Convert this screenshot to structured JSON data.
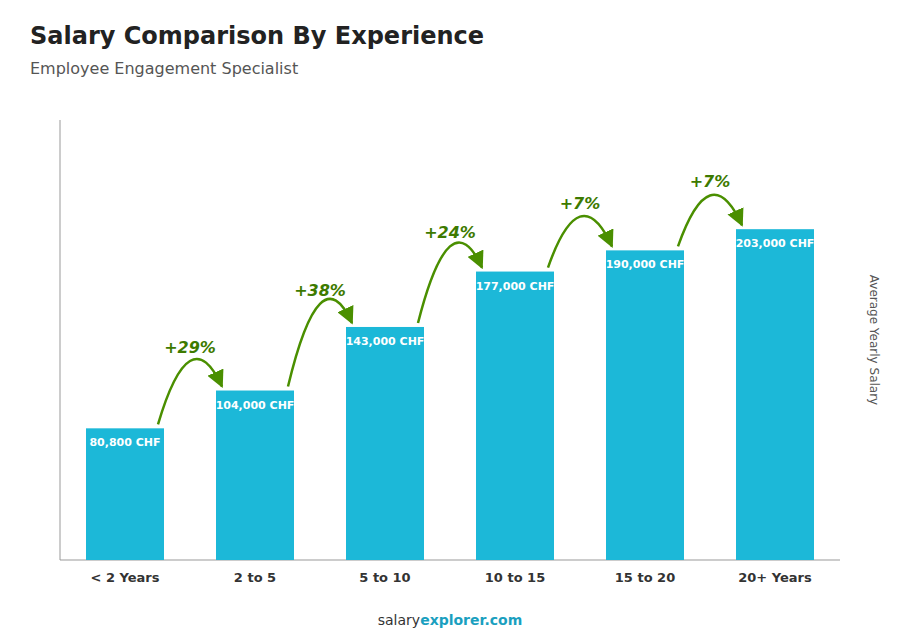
{
  "chart_data": {
    "type": "bar",
    "title": "Salary Comparison By Experience",
    "subtitle": "Employee Engagement Specialist",
    "y_label": "Average Yearly Salary",
    "categories": [
      "< 2 Years",
      "2 to 5",
      "5 to 10",
      "10 to 15",
      "15 to 20",
      "20+ Years"
    ],
    "values": [
      80800,
      104000,
      143000,
      177000,
      190000,
      203000
    ],
    "value_labels": [
      "80,800 CHF",
      "104,000 CHF",
      "143,000 CHF",
      "177,000 CHF",
      "190,000 CHF",
      "203,000 CHF"
    ],
    "data_labels": true,
    "annotations": [
      "+29%",
      "+38%",
      "+24%",
      "+7%",
      "+7%"
    ],
    "footer": [
      "salary",
      "explorer.com"
    ],
    "color": "#1cb8d8",
    "ylim": [
      0,
      270000
    ],
    "tick_labels": "x",
    "grid": false
  }
}
